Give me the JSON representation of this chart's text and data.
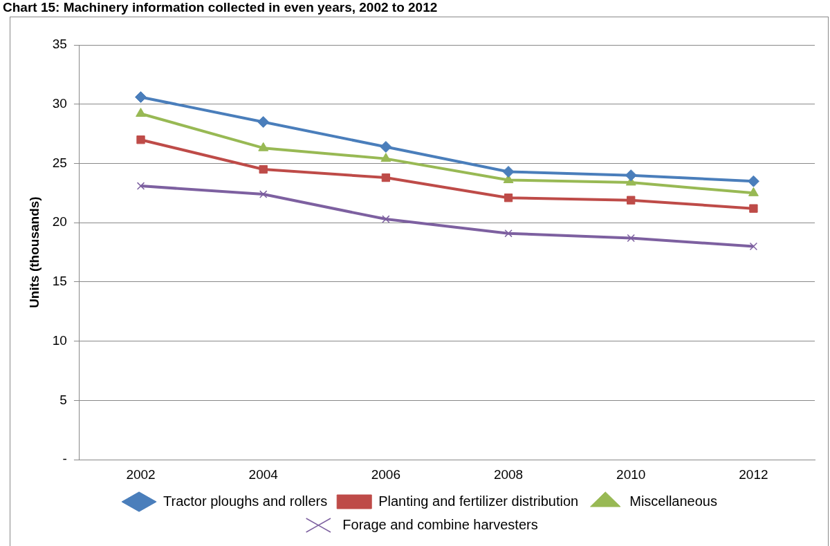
{
  "chart_data": {
    "type": "line",
    "title": "Chart 15: Machinery information collected in even years, 2002 to 2012",
    "ylabel": "Units (thousands)",
    "categories": [
      "2002",
      "2004",
      "2006",
      "2008",
      "2010",
      "2012"
    ],
    "series": [
      {
        "name": "Tractor ploughs and rollers",
        "color": "#4a7ebb",
        "marker": "diamond",
        "values": [
          30.6,
          28.5,
          26.4,
          24.3,
          24.0,
          23.5
        ]
      },
      {
        "name": "Planting and fertilizer distribution",
        "color": "#be4b48",
        "marker": "square",
        "values": [
          27.0,
          24.5,
          23.8,
          22.1,
          21.9,
          21.2
        ]
      },
      {
        "name": "Miscellaneous",
        "color": "#98b954",
        "marker": "triangle",
        "values": [
          29.2,
          26.3,
          25.4,
          23.6,
          23.4,
          22.5
        ]
      },
      {
        "name": "Forage and combine harvesters",
        "color": "#7d60a0",
        "marker": "cross",
        "values": [
          23.1,
          22.4,
          20.3,
          19.1,
          18.7,
          18.0
        ]
      }
    ],
    "ylim": [
      0,
      35
    ],
    "yticks": [
      {
        "value": 0,
        "label": "-"
      },
      5,
      10,
      15,
      20,
      25,
      30,
      35
    ],
    "grid": "y",
    "legend": "bottom"
  }
}
